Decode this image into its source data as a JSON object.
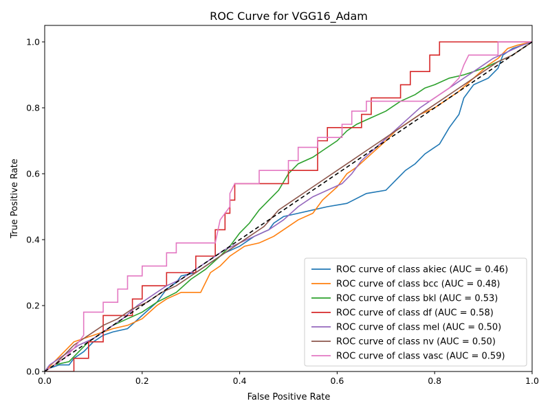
{
  "chart_data": {
    "type": "line",
    "title": "ROC Curve for VGG16_Adam",
    "xlabel": "False Positive Rate",
    "ylabel": "True Positive Rate",
    "xlim": [
      0.0,
      1.0
    ],
    "ylim": [
      0.0,
      1.05
    ],
    "xticks": [
      0.0,
      0.2,
      0.4,
      0.6,
      0.8,
      1.0
    ],
    "yticks": [
      0.0,
      0.2,
      0.4,
      0.6,
      0.8,
      1.0
    ],
    "xtick_labels": [
      "0.0",
      "0.2",
      "0.4",
      "0.6",
      "0.8",
      "1.0"
    ],
    "ytick_labels": [
      "0.0",
      "0.2",
      "0.4",
      "0.6",
      "0.8",
      "1.0"
    ],
    "legend_position": "lower-right",
    "grid": false,
    "diagonal": {
      "style": "dashed",
      "color": "#000000",
      "points": [
        [
          0,
          0
        ],
        [
          1,
          1
        ]
      ]
    },
    "series": [
      {
        "name": "ROC curve of class akiec (AUC = 0.46)",
        "color": "#1f77b4",
        "points": [
          [
            0,
            0
          ],
          [
            0.01,
            0.01
          ],
          [
            0.03,
            0.02
          ],
          [
            0.05,
            0.02
          ],
          [
            0.06,
            0.04
          ],
          [
            0.08,
            0.06
          ],
          [
            0.1,
            0.09
          ],
          [
            0.12,
            0.11
          ],
          [
            0.14,
            0.12
          ],
          [
            0.17,
            0.13
          ],
          [
            0.2,
            0.17
          ],
          [
            0.23,
            0.21
          ],
          [
            0.25,
            0.25
          ],
          [
            0.27,
            0.27
          ],
          [
            0.28,
            0.29
          ],
          [
            0.31,
            0.3
          ],
          [
            0.35,
            0.34
          ],
          [
            0.37,
            0.36
          ],
          [
            0.4,
            0.38
          ],
          [
            0.43,
            0.41
          ],
          [
            0.46,
            0.43
          ],
          [
            0.47,
            0.45
          ],
          [
            0.49,
            0.47
          ],
          [
            0.52,
            0.48
          ],
          [
            0.55,
            0.49
          ],
          [
            0.58,
            0.5
          ],
          [
            0.62,
            0.51
          ],
          [
            0.66,
            0.54
          ],
          [
            0.7,
            0.55
          ],
          [
            0.72,
            0.58
          ],
          [
            0.74,
            0.61
          ],
          [
            0.76,
            0.63
          ],
          [
            0.78,
            0.66
          ],
          [
            0.8,
            0.68
          ],
          [
            0.81,
            0.69
          ],
          [
            0.83,
            0.74
          ],
          [
            0.85,
            0.78
          ],
          [
            0.86,
            0.83
          ],
          [
            0.88,
            0.87
          ],
          [
            0.91,
            0.89
          ],
          [
            0.93,
            0.92
          ],
          [
            0.94,
            0.96
          ],
          [
            0.96,
            0.98
          ],
          [
            0.98,
            0.99
          ],
          [
            1,
            1
          ]
        ]
      },
      {
        "name": "ROC curve of class bcc (AUC = 0.48)",
        "color": "#ff7f0e",
        "points": [
          [
            0,
            0
          ],
          [
            0.02,
            0.03
          ],
          [
            0.04,
            0.06
          ],
          [
            0.06,
            0.09
          ],
          [
            0.08,
            0.1
          ],
          [
            0.1,
            0.11
          ],
          [
            0.14,
            0.13
          ],
          [
            0.17,
            0.14
          ],
          [
            0.2,
            0.16
          ],
          [
            0.23,
            0.2
          ],
          [
            0.25,
            0.22
          ],
          [
            0.28,
            0.24
          ],
          [
            0.32,
            0.24
          ],
          [
            0.34,
            0.3
          ],
          [
            0.36,
            0.32
          ],
          [
            0.38,
            0.35
          ],
          [
            0.41,
            0.38
          ],
          [
            0.44,
            0.39
          ],
          [
            0.47,
            0.41
          ],
          [
            0.5,
            0.44
          ],
          [
            0.52,
            0.46
          ],
          [
            0.55,
            0.48
          ],
          [
            0.57,
            0.52
          ],
          [
            0.6,
            0.56
          ],
          [
            0.62,
            0.6
          ],
          [
            0.64,
            0.62
          ],
          [
            0.67,
            0.66
          ],
          [
            0.7,
            0.7
          ],
          [
            0.72,
            0.73
          ],
          [
            0.75,
            0.76
          ],
          [
            0.77,
            0.78
          ],
          [
            0.8,
            0.8
          ],
          [
            0.82,
            0.82
          ],
          [
            0.85,
            0.85
          ],
          [
            0.88,
            0.89
          ],
          [
            0.91,
            0.93
          ],
          [
            0.93,
            0.95
          ],
          [
            0.95,
            0.98
          ],
          [
            0.97,
            0.99
          ],
          [
            1,
            1
          ]
        ]
      },
      {
        "name": "ROC curve of class bkl (AUC = 0.53)",
        "color": "#2ca02c",
        "points": [
          [
            0,
            0
          ],
          [
            0.02,
            0.02
          ],
          [
            0.05,
            0.03
          ],
          [
            0.07,
            0.06
          ],
          [
            0.09,
            0.09
          ],
          [
            0.11,
            0.11
          ],
          [
            0.14,
            0.14
          ],
          [
            0.17,
            0.16
          ],
          [
            0.2,
            0.18
          ],
          [
            0.23,
            0.21
          ],
          [
            0.27,
            0.24
          ],
          [
            0.3,
            0.28
          ],
          [
            0.33,
            0.31
          ],
          [
            0.36,
            0.35
          ],
          [
            0.38,
            0.38
          ],
          [
            0.4,
            0.42
          ],
          [
            0.42,
            0.45
          ],
          [
            0.44,
            0.49
          ],
          [
            0.46,
            0.52
          ],
          [
            0.48,
            0.55
          ],
          [
            0.5,
            0.6
          ],
          [
            0.52,
            0.63
          ],
          [
            0.55,
            0.65
          ],
          [
            0.57,
            0.67
          ],
          [
            0.6,
            0.7
          ],
          [
            0.62,
            0.73
          ],
          [
            0.64,
            0.75
          ],
          [
            0.67,
            0.77
          ],
          [
            0.7,
            0.79
          ],
          [
            0.73,
            0.82
          ],
          [
            0.76,
            0.84
          ],
          [
            0.78,
            0.86
          ],
          [
            0.8,
            0.87
          ],
          [
            0.83,
            0.89
          ],
          [
            0.86,
            0.9
          ],
          [
            0.88,
            0.91
          ],
          [
            0.9,
            0.92
          ],
          [
            0.93,
            0.94
          ],
          [
            0.96,
            0.96
          ],
          [
            0.98,
            0.98
          ],
          [
            1,
            1
          ]
        ]
      },
      {
        "name": "ROC curve of class df (AUC = 0.58)",
        "color": "#d62728",
        "points": [
          [
            0,
            0
          ],
          [
            0.06,
            0
          ],
          [
            0.06,
            0.04
          ],
          [
            0.09,
            0.04
          ],
          [
            0.09,
            0.09
          ],
          [
            0.12,
            0.09
          ],
          [
            0.12,
            0.17
          ],
          [
            0.18,
            0.17
          ],
          [
            0.18,
            0.22
          ],
          [
            0.2,
            0.22
          ],
          [
            0.2,
            0.26
          ],
          [
            0.25,
            0.26
          ],
          [
            0.25,
            0.3
          ],
          [
            0.31,
            0.3
          ],
          [
            0.31,
            0.35
          ],
          [
            0.35,
            0.35
          ],
          [
            0.35,
            0.43
          ],
          [
            0.37,
            0.43
          ],
          [
            0.37,
            0.48
          ],
          [
            0.38,
            0.48
          ],
          [
            0.38,
            0.52
          ],
          [
            0.39,
            0.52
          ],
          [
            0.39,
            0.57
          ],
          [
            0.5,
            0.57
          ],
          [
            0.5,
            0.61
          ],
          [
            0.56,
            0.61
          ],
          [
            0.56,
            0.7
          ],
          [
            0.58,
            0.7
          ],
          [
            0.58,
            0.74
          ],
          [
            0.65,
            0.74
          ],
          [
            0.65,
            0.78
          ],
          [
            0.67,
            0.78
          ],
          [
            0.67,
            0.83
          ],
          [
            0.73,
            0.83
          ],
          [
            0.73,
            0.87
          ],
          [
            0.75,
            0.87
          ],
          [
            0.75,
            0.91
          ],
          [
            0.79,
            0.91
          ],
          [
            0.79,
            0.96
          ],
          [
            0.81,
            0.96
          ],
          [
            0.81,
            1.0
          ],
          [
            1,
            1
          ]
        ]
      },
      {
        "name": "ROC curve of class mel (AUC = 0.50)",
        "color": "#9467bd",
        "points": [
          [
            0,
            0
          ],
          [
            0.01,
            0.02
          ],
          [
            0.03,
            0.04
          ],
          [
            0.05,
            0.06
          ],
          [
            0.07,
            0.08
          ],
          [
            0.1,
            0.1
          ],
          [
            0.13,
            0.13
          ],
          [
            0.16,
            0.16
          ],
          [
            0.19,
            0.2
          ],
          [
            0.22,
            0.23
          ],
          [
            0.25,
            0.26
          ],
          [
            0.28,
            0.28
          ],
          [
            0.31,
            0.31
          ],
          [
            0.34,
            0.34
          ],
          [
            0.37,
            0.37
          ],
          [
            0.4,
            0.39
          ],
          [
            0.43,
            0.41
          ],
          [
            0.46,
            0.43
          ],
          [
            0.49,
            0.46
          ],
          [
            0.52,
            0.5
          ],
          [
            0.55,
            0.53
          ],
          [
            0.58,
            0.55
          ],
          [
            0.61,
            0.57
          ],
          [
            0.63,
            0.6
          ],
          [
            0.65,
            0.64
          ],
          [
            0.68,
            0.68
          ],
          [
            0.71,
            0.72
          ],
          [
            0.74,
            0.76
          ],
          [
            0.77,
            0.8
          ],
          [
            0.8,
            0.83
          ],
          [
            0.83,
            0.86
          ],
          [
            0.86,
            0.89
          ],
          [
            0.89,
            0.92
          ],
          [
            0.92,
            0.95
          ],
          [
            0.95,
            0.97
          ],
          [
            0.98,
            0.99
          ],
          [
            1,
            1
          ]
        ]
      },
      {
        "name": "ROC curve of class nv (AUC = 0.50)",
        "color": "#8c564b",
        "points": [
          [
            0,
            0
          ],
          [
            0.02,
            0.02
          ],
          [
            0.04,
            0.05
          ],
          [
            0.06,
            0.08
          ],
          [
            0.08,
            0.1
          ],
          [
            0.1,
            0.12
          ],
          [
            0.12,
            0.14
          ],
          [
            0.15,
            0.16
          ],
          [
            0.18,
            0.19
          ],
          [
            0.21,
            0.21
          ],
          [
            0.24,
            0.24
          ],
          [
            0.27,
            0.26
          ],
          [
            0.3,
            0.29
          ],
          [
            0.33,
            0.32
          ],
          [
            0.36,
            0.35
          ],
          [
            0.39,
            0.38
          ],
          [
            0.42,
            0.41
          ],
          [
            0.45,
            0.44
          ],
          [
            0.48,
            0.49
          ],
          [
            0.51,
            0.52
          ],
          [
            0.54,
            0.55
          ],
          [
            0.57,
            0.58
          ],
          [
            0.6,
            0.61
          ],
          [
            0.63,
            0.64
          ],
          [
            0.66,
            0.67
          ],
          [
            0.69,
            0.7
          ],
          [
            0.72,
            0.73
          ],
          [
            0.75,
            0.76
          ],
          [
            0.78,
            0.79
          ],
          [
            0.81,
            0.82
          ],
          [
            0.84,
            0.85
          ],
          [
            0.87,
            0.88
          ],
          [
            0.9,
            0.91
          ],
          [
            0.93,
            0.94
          ],
          [
            0.96,
            0.96
          ],
          [
            0.98,
            0.98
          ],
          [
            1,
            1
          ]
        ]
      },
      {
        "name": "ROC curve of class vasc (AUC = 0.59)",
        "color": "#e377c2",
        "points": [
          [
            0,
            0
          ],
          [
            0.04,
            0.04
          ],
          [
            0.06,
            0.07
          ],
          [
            0.08,
            0.11
          ],
          [
            0.08,
            0.18
          ],
          [
            0.12,
            0.18
          ],
          [
            0.12,
            0.21
          ],
          [
            0.15,
            0.21
          ],
          [
            0.15,
            0.25
          ],
          [
            0.17,
            0.25
          ],
          [
            0.17,
            0.29
          ],
          [
            0.2,
            0.29
          ],
          [
            0.2,
            0.32
          ],
          [
            0.25,
            0.32
          ],
          [
            0.25,
            0.36
          ],
          [
            0.27,
            0.36
          ],
          [
            0.27,
            0.39
          ],
          [
            0.35,
            0.39
          ],
          [
            0.36,
            0.46
          ],
          [
            0.38,
            0.5
          ],
          [
            0.38,
            0.54
          ],
          [
            0.39,
            0.57
          ],
          [
            0.44,
            0.57
          ],
          [
            0.44,
            0.61
          ],
          [
            0.5,
            0.61
          ],
          [
            0.5,
            0.64
          ],
          [
            0.52,
            0.64
          ],
          [
            0.52,
            0.68
          ],
          [
            0.56,
            0.68
          ],
          [
            0.56,
            0.71
          ],
          [
            0.61,
            0.71
          ],
          [
            0.61,
            0.75
          ],
          [
            0.63,
            0.75
          ],
          [
            0.63,
            0.79
          ],
          [
            0.66,
            0.79
          ],
          [
            0.66,
            0.82
          ],
          [
            0.79,
            0.82
          ],
          [
            0.83,
            0.86
          ],
          [
            0.85,
            0.89
          ],
          [
            0.86,
            0.93
          ],
          [
            0.87,
            0.96
          ],
          [
            0.93,
            0.96
          ],
          [
            0.93,
            1.0
          ],
          [
            1,
            1
          ]
        ]
      }
    ]
  }
}
